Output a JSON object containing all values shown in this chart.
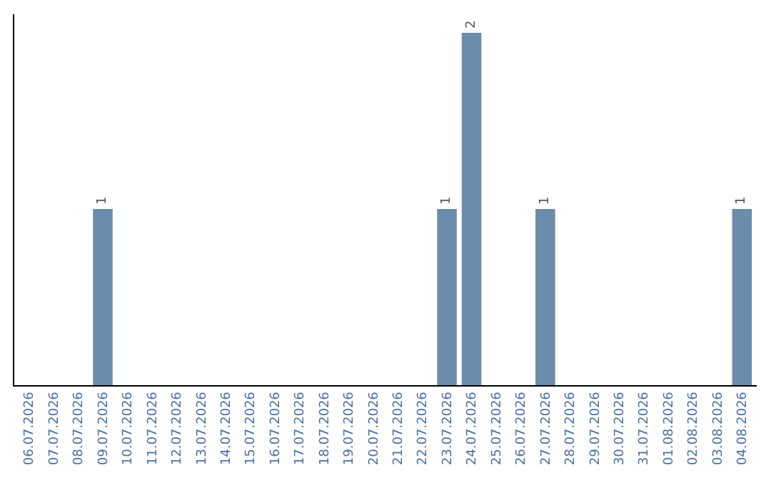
{
  "chart_data": {
    "type": "bar",
    "categories": [
      "06.07.2026",
      "07.07.2026",
      "08.07.2026",
      "09.07.2026",
      "10.07.2026",
      "11.07.2026",
      "12.07.2026",
      "13.07.2026",
      "14.07.2026",
      "15.07.2026",
      "16.07.2026",
      "17.07.2026",
      "18.07.2026",
      "19.07.2026",
      "20.07.2026",
      "21.07.2026",
      "22.07.2026",
      "23.07.2026",
      "24.07.2026",
      "25.07.2026",
      "26.07.2026",
      "27.07.2026",
      "28.07.2026",
      "29.07.2026",
      "30.07.2026",
      "31.07.2026",
      "01.08.2026",
      "02.08.2026",
      "03.08.2026",
      "04.08.2026"
    ],
    "values": [
      0,
      0,
      0,
      1,
      0,
      0,
      0,
      0,
      0,
      0,
      0,
      0,
      0,
      0,
      0,
      0,
      0,
      1,
      2,
      0,
      0,
      1,
      0,
      0,
      0,
      0,
      0,
      0,
      0,
      1
    ],
    "value_labels": [
      null,
      null,
      null,
      "1",
      null,
      null,
      null,
      null,
      null,
      null,
      null,
      null,
      null,
      null,
      null,
      null,
      null,
      "1",
      "2",
      null,
      null,
      "1",
      null,
      null,
      null,
      null,
      null,
      null,
      null,
      "1"
    ],
    "color": "#6b8caa",
    "tick_labels": "x",
    "legend": false
  }
}
